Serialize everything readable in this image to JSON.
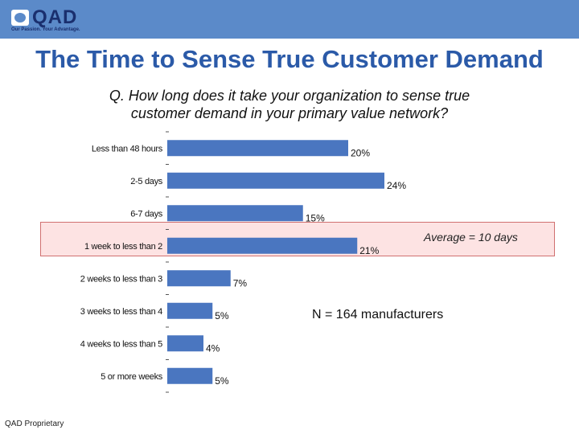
{
  "header": {
    "logo_text": "QAD",
    "tagline": "Our Passion. Your Advantage.",
    "color": "#5b8ac9"
  },
  "page_title": "The Time to Sense True Customer Demand",
  "question_line1": "Q. How long does it take your organization to sense true",
  "question_line2": "customer demand in your primary value network?",
  "annotations": {
    "average": "Average = 10 days",
    "n": "N = 164 manufacturers"
  },
  "footer": "QAD Proprietary",
  "chart_data": {
    "type": "bar",
    "orientation": "horizontal",
    "categories": [
      "Less than 48 hours",
      "2-5 days",
      "6-7 days",
      "1 week to less than 2",
      "2 weeks to less than 3",
      "3 weeks to less than 4",
      "4 weeks to less than 5",
      "5 or more weeks"
    ],
    "values": [
      20,
      24,
      15,
      21,
      7,
      5,
      4,
      5
    ],
    "value_labels": [
      "20%",
      "24%",
      "15%",
      "21%",
      "7%",
      "5%",
      "4%",
      "5%"
    ],
    "value_unit": "%",
    "highlighted_category": "1 week to less than 2",
    "bar_color": "#4a76c0",
    "highlight_color": "#fde3e3",
    "grid": false,
    "legend": "none"
  }
}
